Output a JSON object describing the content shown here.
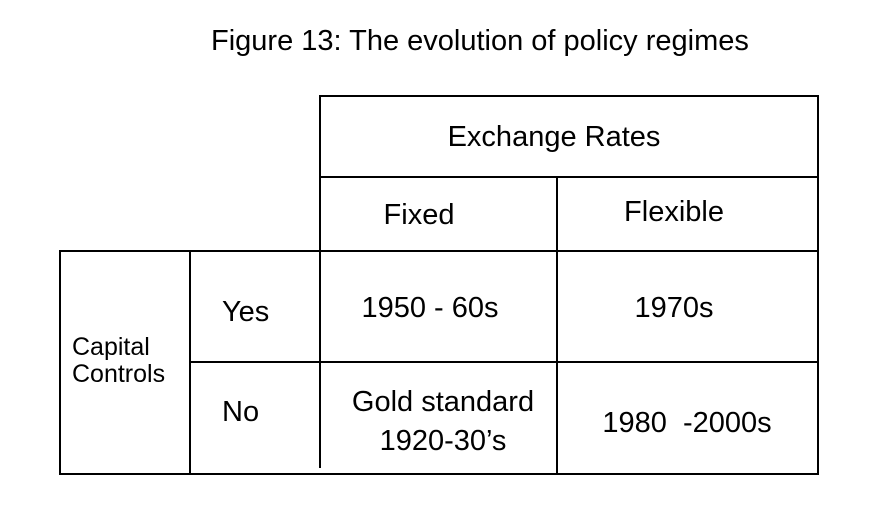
{
  "title": "Figure 13: The evolution of policy regimes",
  "table": {
    "column_group": "Exchange Rates",
    "columns": [
      "Fixed",
      "Flexible"
    ],
    "row_group_line1": "Capital",
    "row_group_line2": "Controls",
    "rows": [
      {
        "label": "Yes",
        "fixed": "1950 - 60s",
        "flexible": "1970s"
      },
      {
        "label": "No",
        "fixed_line1": "Gold standard",
        "fixed_line2": "1920-30’s",
        "flexible": "1980  -2000s"
      }
    ]
  }
}
